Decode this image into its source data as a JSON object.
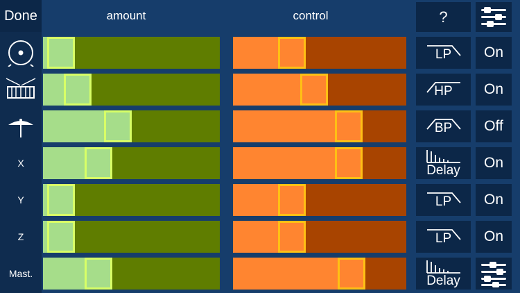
{
  "header": {
    "done_label": "Done",
    "amount_label": "amount",
    "control_label": "control",
    "help_label": "?",
    "settings_icon": "sliders-icon"
  },
  "colors": {
    "background": "#163d6b",
    "amount_track": "#5f7d00",
    "amount_fill": "#a6dd8a",
    "amount_knob_border": "#d8ff66",
    "control_track": "#a84400",
    "control_fill": "#ff8530",
    "control_knob_border": "#ffc014"
  },
  "rows": [
    {
      "id": "drum",
      "label": "",
      "icon": "bass-drum-icon",
      "amount": 0.03,
      "control": 0.31,
      "filter": "LP",
      "filter_icon": "lowpass-icon",
      "toggle": "On"
    },
    {
      "id": "snare",
      "label": "",
      "icon": "snare-drum-icon",
      "amount": 0.14,
      "control": 0.46,
      "filter": "HP",
      "filter_icon": "highpass-icon",
      "toggle": "On"
    },
    {
      "id": "cymbal",
      "label": "",
      "icon": "cymbal-icon",
      "amount": 0.41,
      "control": 0.7,
      "filter": "BP",
      "filter_icon": "bandpass-icon",
      "toggle": "Off"
    },
    {
      "id": "x",
      "label": "X",
      "icon": "",
      "amount": 0.28,
      "control": 0.7,
      "filter": "Delay",
      "filter_icon": "delay-icon",
      "toggle": "On"
    },
    {
      "id": "y",
      "label": "Y",
      "icon": "",
      "amount": 0.03,
      "control": 0.31,
      "filter": "LP",
      "filter_icon": "lowpass-icon",
      "toggle": "On"
    },
    {
      "id": "z",
      "label": "Z",
      "icon": "",
      "amount": 0.03,
      "control": 0.31,
      "filter": "LP",
      "filter_icon": "lowpass-icon",
      "toggle": "On"
    },
    {
      "id": "master",
      "label": "Mast.",
      "icon": "",
      "amount": 0.28,
      "control": 0.72,
      "filter": "Delay",
      "filter_icon": "delay-icon",
      "toggle": "",
      "toggle_icon": "mixer-icon"
    }
  ]
}
